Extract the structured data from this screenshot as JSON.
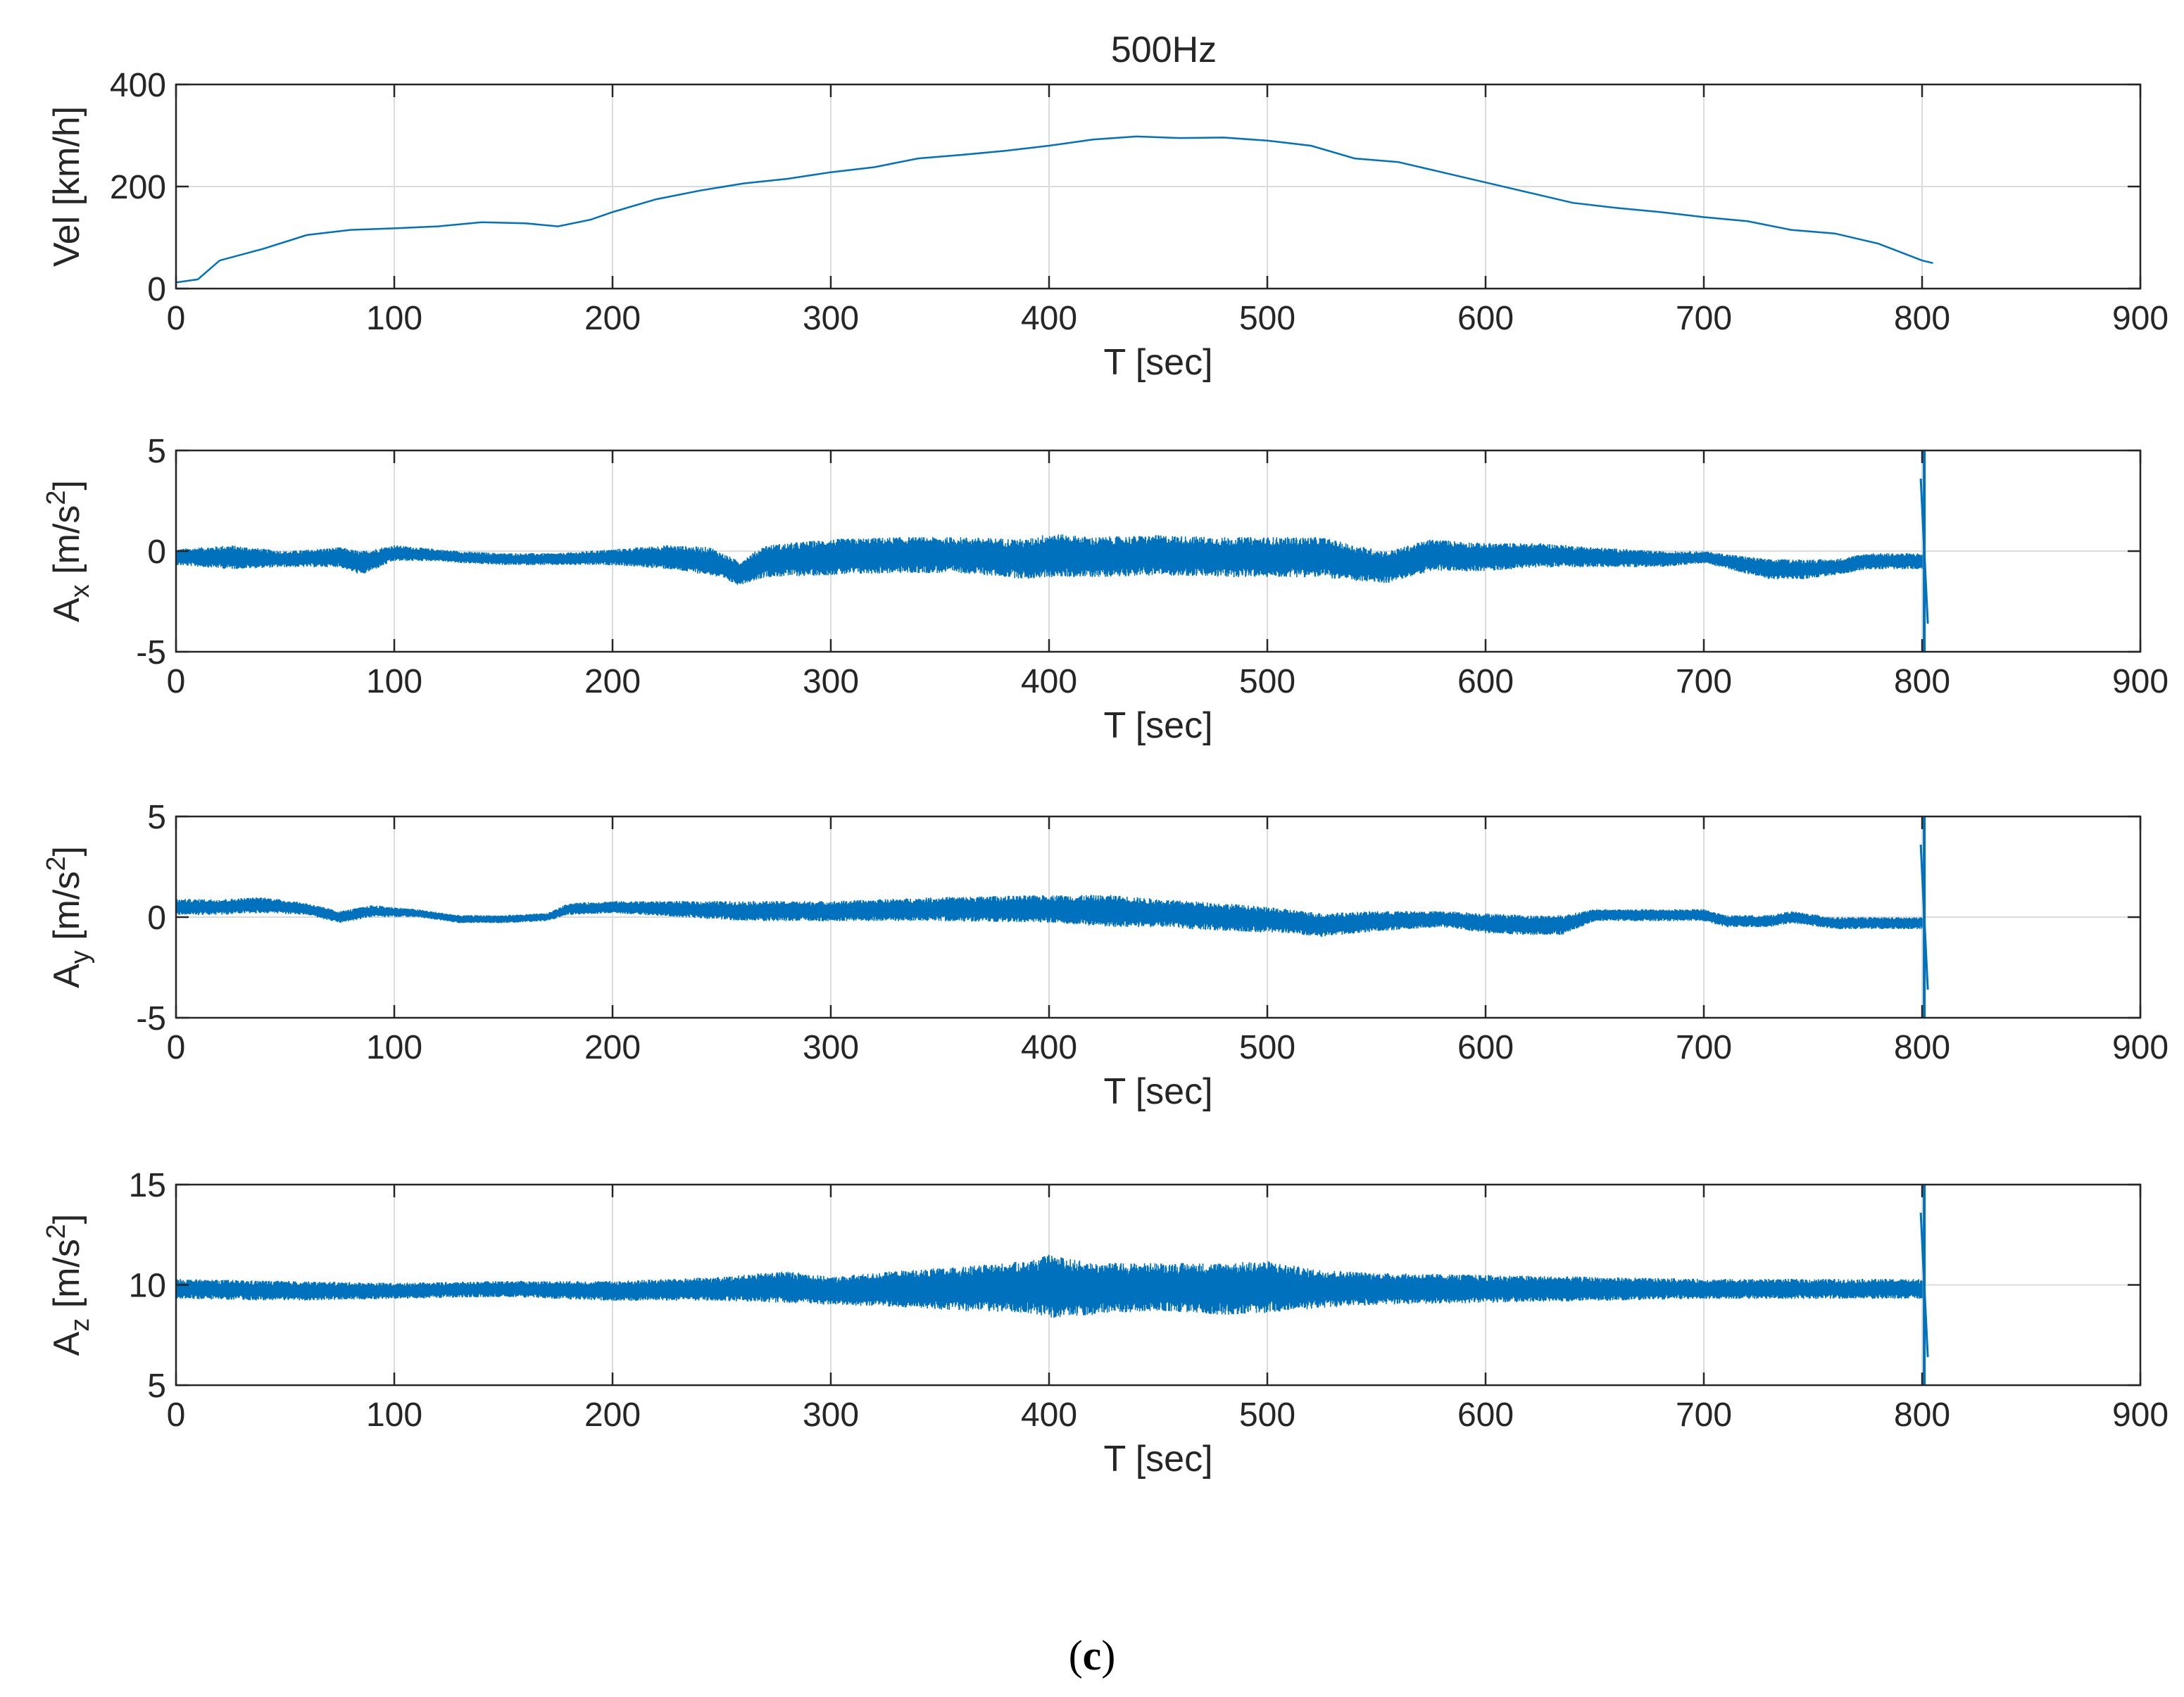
{
  "figure": {
    "title": "500Hz",
    "caption_open": "(",
    "caption_letter": "c",
    "caption_close": ")"
  },
  "colors": {
    "series": "#0072BD",
    "axis": "#262626",
    "grid": "#dcdcdc"
  },
  "chart_data": [
    {
      "type": "line",
      "title": "500Hz",
      "xlabel": "T [sec]",
      "ylabel": "Vel [km/h]",
      "xlim": [
        0,
        900
      ],
      "ylim": [
        0,
        400
      ],
      "xticks": [
        0,
        100,
        200,
        300,
        400,
        500,
        600,
        700,
        800,
        900
      ],
      "yticks": [
        0,
        200,
        400
      ],
      "grid": true,
      "series": [
        {
          "name": "Vel",
          "style": "line",
          "x": [
            0,
            10,
            20,
            40,
            60,
            80,
            100,
            120,
            140,
            160,
            175,
            190,
            200,
            220,
            240,
            260,
            280,
            300,
            320,
            340,
            360,
            380,
            400,
            420,
            440,
            460,
            480,
            500,
            520,
            540,
            560,
            580,
            600,
            620,
            640,
            660,
            680,
            700,
            720,
            740,
            760,
            780,
            800,
            805
          ],
          "y": [
            12,
            18,
            55,
            78,
            105,
            115,
            118,
            122,
            130,
            128,
            122,
            135,
            150,
            175,
            192,
            206,
            215,
            228,
            238,
            255,
            262,
            270,
            280,
            292,
            298,
            295,
            296,
            290,
            280,
            255,
            248,
            228,
            208,
            188,
            168,
            158,
            150,
            140,
            132,
            115,
            108,
            88,
            55,
            50
          ]
        }
      ]
    },
    {
      "type": "line",
      "xlabel": "T [sec]",
      "ylabel_main": "A",
      "ylabel_sub": "x",
      "ylabel_unit": " [m/s",
      "ylabel_sup": "2",
      "ylabel_close": "]",
      "xlim": [
        0,
        900
      ],
      "ylim": [
        -5,
        5
      ],
      "xticks": [
        0,
        100,
        200,
        300,
        400,
        500,
        600,
        700,
        800,
        900
      ],
      "yticks": [
        -5,
        0,
        5
      ],
      "grid": true,
      "series": [
        {
          "name": "A_x",
          "style": "band",
          "x": [
            0,
            25,
            50,
            75,
            85,
            100,
            120,
            130,
            150,
            175,
            200,
            225,
            245,
            258,
            270,
            300,
            330,
            360,
            390,
            400,
            420,
            450,
            480,
            510,
            525,
            540,
            555,
            575,
            600,
            625,
            650,
            680,
            700,
            715,
            730,
            745,
            760,
            775,
            790,
            800
          ],
          "mean": [
            -0.3,
            -0.3,
            -0.4,
            -0.3,
            -0.6,
            -0.1,
            -0.2,
            -0.3,
            -0.4,
            -0.4,
            -0.3,
            -0.3,
            -0.5,
            -1.1,
            -0.5,
            -0.3,
            -0.2,
            -0.2,
            -0.4,
            -0.2,
            -0.3,
            -0.2,
            -0.3,
            -0.3,
            -0.3,
            -0.6,
            -0.8,
            -0.2,
            -0.3,
            -0.2,
            -0.3,
            -0.4,
            -0.3,
            -0.6,
            -0.9,
            -0.9,
            -0.8,
            -0.5,
            -0.5,
            -0.5
          ],
          "amp": [
            0.4,
            0.6,
            0.4,
            0.5,
            0.6,
            0.4,
            0.3,
            0.3,
            0.3,
            0.3,
            0.4,
            0.6,
            0.7,
            0.6,
            0.8,
            0.9,
            0.9,
            0.9,
            1.0,
            1.1,
            1.0,
            1.0,
            1.0,
            1.0,
            1.0,
            0.9,
            0.8,
            0.8,
            0.7,
            0.6,
            0.5,
            0.4,
            0.3,
            0.4,
            0.5,
            0.5,
            0.4,
            0.4,
            0.4,
            0.4
          ],
          "spike_x": 801,
          "spike_range": [
            -5,
            5
          ]
        }
      ]
    },
    {
      "type": "line",
      "xlabel": "T [sec]",
      "ylabel_main": "A",
      "ylabel_sub": "y",
      "ylabel_unit": " [m/s",
      "ylabel_sup": "2",
      "ylabel_close": "]",
      "xlim": [
        0,
        900
      ],
      "ylim": [
        -5,
        5
      ],
      "xticks": [
        0,
        100,
        200,
        300,
        400,
        500,
        600,
        700,
        800,
        900
      ],
      "yticks": [
        -5,
        0,
        5
      ],
      "grid": true,
      "series": [
        {
          "name": "A_y",
          "style": "band",
          "x": [
            0,
            20,
            40,
            60,
            75,
            90,
            110,
            130,
            150,
            170,
            180,
            200,
            230,
            260,
            300,
            350,
            400,
            430,
            450,
            480,
            510,
            525,
            550,
            580,
            600,
            620,
            635,
            650,
            680,
            700,
            710,
            730,
            740,
            760,
            780,
            800
          ],
          "mean": [
            0.5,
            0.5,
            0.6,
            0.4,
            0.0,
            0.3,
            0.2,
            -0.1,
            -0.1,
            0.0,
            0.4,
            0.5,
            0.4,
            0.3,
            0.3,
            0.4,
            0.4,
            0.3,
            0.2,
            0.0,
            -0.2,
            -0.4,
            -0.2,
            -0.1,
            -0.3,
            -0.4,
            -0.4,
            0.1,
            0.1,
            0.1,
            -0.2,
            -0.2,
            0.0,
            -0.3,
            -0.3,
            -0.3
          ],
          "amp": [
            0.4,
            0.4,
            0.4,
            0.3,
            0.3,
            0.3,
            0.2,
            0.2,
            0.2,
            0.2,
            0.3,
            0.3,
            0.4,
            0.5,
            0.5,
            0.6,
            0.7,
            0.8,
            0.7,
            0.7,
            0.6,
            0.6,
            0.5,
            0.4,
            0.5,
            0.5,
            0.5,
            0.3,
            0.3,
            0.3,
            0.3,
            0.3,
            0.3,
            0.3,
            0.3,
            0.3
          ],
          "spike_x": 801,
          "spike_range": [
            -5,
            5
          ]
        }
      ]
    },
    {
      "type": "line",
      "xlabel": "T [sec]",
      "ylabel_main": "A",
      "ylabel_sub": "z",
      "ylabel_unit": " [m/s",
      "ylabel_sup": "2",
      "ylabel_close": "]",
      "xlim": [
        0,
        900
      ],
      "ylim": [
        5,
        15
      ],
      "xticks": [
        0,
        100,
        200,
        300,
        400,
        500,
        600,
        700,
        800,
        900
      ],
      "yticks": [
        5,
        10,
        15
      ],
      "grid": true,
      "series": [
        {
          "name": "A_z",
          "style": "band",
          "x": [
            0,
            50,
            100,
            150,
            200,
            250,
            280,
            300,
            330,
            360,
            390,
            400,
            420,
            450,
            480,
            500,
            520,
            550,
            600,
            650,
            700,
            750,
            800
          ],
          "mean": [
            9.8,
            9.7,
            9.7,
            9.8,
            9.7,
            9.8,
            9.9,
            9.7,
            9.8,
            9.8,
            9.9,
            9.9,
            9.8,
            9.9,
            9.8,
            9.9,
            9.8,
            9.8,
            9.8,
            9.8,
            9.8,
            9.8,
            9.8
          ],
          "amp": [
            0.5,
            0.5,
            0.4,
            0.4,
            0.5,
            0.6,
            0.8,
            0.7,
            0.9,
            1.1,
            1.3,
            1.6,
            1.3,
            1.2,
            1.3,
            1.3,
            1.0,
            0.8,
            0.7,
            0.6,
            0.5,
            0.5,
            0.5
          ],
          "spike_x": 801,
          "spike_range": [
            5,
            15
          ]
        }
      ]
    }
  ]
}
